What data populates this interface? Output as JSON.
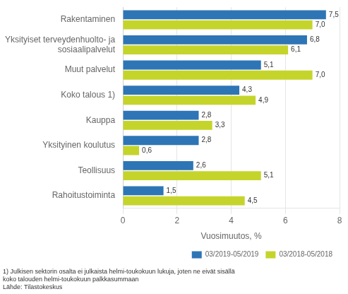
{
  "chart_data": {
    "type": "bar",
    "orientation": "horizontal",
    "categories": [
      "Rahoitustoiminta",
      "Teollisuus",
      "Yksityinen koulutus",
      "Kauppa",
      "Koko talous 1)",
      "Muut palvelut",
      "Yksityiset terveydenhuolto- ja\nsosiaalipalvelut",
      "Rakentaminen"
    ],
    "series": [
      {
        "name": "03/2019-05/2019",
        "color": "#2E75B6",
        "values": [
          1.5,
          2.6,
          2.8,
          2.8,
          4.3,
          5.1,
          6.8,
          7.5
        ],
        "value_labels": [
          "1,5",
          "2,6",
          "2,8",
          "2,8",
          "4,3",
          "5,1",
          "6,8",
          "7,5"
        ]
      },
      {
        "name": "03/2018-05/2018",
        "color": "#C5D42B",
        "values": [
          4.5,
          5.1,
          0.6,
          3.3,
          4.9,
          7.0,
          6.1,
          7.0
        ],
        "value_labels": [
          "4,5",
          "5,1",
          "0,6",
          "3,3",
          "4,9",
          "7,0",
          "6,1",
          "7,0"
        ]
      }
    ],
    "x_label": "Vuosimuutos, %",
    "xlim": [
      0,
      8
    ],
    "xticks": [
      0,
      2,
      4,
      6,
      8
    ],
    "grid": true,
    "legend": "lower right",
    "data_labels": true,
    "annotations": [
      "1) Julkisen sektorin osalta ei julkaista helmi-toukokuun lukuja, joten ne eivät sisällä",
      "koko talouden helmi-toukokuun palkkasummaan",
      "Lähde: Tilastokeskus"
    ]
  }
}
